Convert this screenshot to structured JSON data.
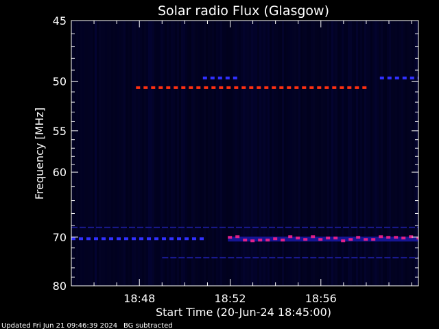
{
  "chart_data": {
    "type": "heatmap",
    "title": "Solar radio Flux (Glasgow)",
    "ylabel": "Frequency [MHz]",
    "xlabel": "Start Time (20-Jun-24 18:45:00)",
    "x_unit": "minutes after 18:45:00",
    "xlim": [
      0,
      15.3
    ],
    "ylim": [
      80,
      45
    ],
    "yticks": [
      45,
      50,
      55,
      60,
      70,
      80
    ],
    "xticks": [
      {
        "t": 3,
        "label": "18:48"
      },
      {
        "t": 7,
        "label": "18:52"
      },
      {
        "t": 11,
        "label": "18:56"
      }
    ],
    "background_color": "#00001a",
    "strong_color": "#ff3010",
    "medium_color": "#e0208a",
    "weak_color": "#3030ff",
    "bands": [
      {
        "freq": 50.6,
        "t_start": 2.85,
        "t_end": 13.1,
        "intensity": "strong",
        "dashed": true
      },
      {
        "freq": 49.7,
        "t_start": 5.8,
        "t_end": 7.4,
        "intensity": "weak",
        "dashed": true
      },
      {
        "freq": 49.7,
        "t_start": 13.6,
        "t_end": 15.3,
        "intensity": "weak",
        "dashed": true
      },
      {
        "freq": 70.3,
        "t_start": 0,
        "t_end": 5.9,
        "intensity": "weak",
        "dashed": true
      },
      {
        "freq": 70.3,
        "t_start": 6.9,
        "t_end": 15.3,
        "intensity": "medium",
        "dashed": true
      },
      {
        "freq": 68.3,
        "t_start": 0,
        "t_end": 15.3,
        "intensity": "faint",
        "dashed": true
      },
      {
        "freq": 73.9,
        "t_start": 4,
        "t_end": 15.3,
        "intensity": "faint",
        "dashed": true
      }
    ]
  },
  "footer": {
    "updated": "Updated Fri Jun 21 09:46:39 2024",
    "bg_note": "BG subtracted"
  }
}
